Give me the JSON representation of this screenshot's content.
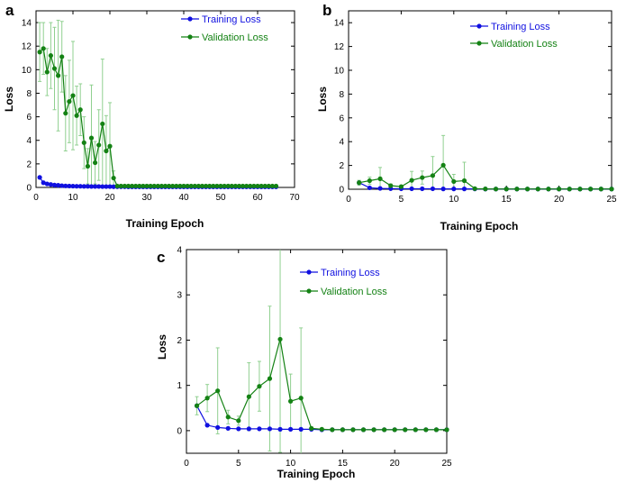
{
  "colors": {
    "training": "#1010e0",
    "validation": "#148214",
    "validation_err": "#90d090",
    "training_err": "#8c8cf0"
  },
  "chart_data": [
    {
      "panel": "a",
      "type": "line",
      "title": "",
      "xlabel": "Training Epoch",
      "ylabel": "Loss",
      "xlim": [
        0,
        70
      ],
      "ylim": [
        0,
        15
      ],
      "xticks": [
        "0",
        "10",
        "20",
        "30",
        "40",
        "50",
        "60",
        "70"
      ],
      "yticks": [
        "0",
        "2",
        "4",
        "6",
        "8",
        "10",
        "12",
        "14"
      ],
      "legend_position": "top-right",
      "grid": false,
      "series": [
        {
          "name": "Training Loss",
          "color": "#1010e0",
          "x": [
            1,
            2,
            3,
            4,
            5,
            6,
            7,
            8,
            9,
            10,
            11,
            12,
            13,
            14,
            15,
            16,
            17,
            18,
            19,
            20,
            21,
            22,
            23,
            24,
            25,
            26,
            27,
            28,
            29,
            30,
            31,
            32,
            33,
            34,
            35,
            36,
            37,
            38,
            39,
            40,
            41,
            42,
            43,
            44,
            45,
            46,
            47,
            48,
            49,
            50,
            51,
            52,
            53,
            54,
            55,
            56,
            57,
            58,
            59,
            60,
            61,
            62,
            63,
            64,
            65
          ],
          "y": [
            0.85,
            0.4,
            0.3,
            0.25,
            0.2,
            0.18,
            0.15,
            0.13,
            0.12,
            0.11,
            0.1,
            0.1,
            0.09,
            0.09,
            0.08,
            0.08,
            0.08,
            0.07,
            0.07,
            0.07,
            0.06,
            0.06,
            0.06,
            0.06,
            0.05,
            0.05,
            0.05,
            0.05,
            0.05,
            0.05,
            0.05,
            0.05,
            0.05,
            0.05,
            0.05,
            0.05,
            0.05,
            0.05,
            0.05,
            0.05,
            0.05,
            0.05,
            0.05,
            0.05,
            0.05,
            0.05,
            0.05,
            0.05,
            0.05,
            0.05,
            0.05,
            0.05,
            0.05,
            0.05,
            0.05,
            0.05,
            0.05,
            0.05,
            0.05,
            0.05,
            0.05,
            0.05,
            0.05,
            0.05,
            0.05
          ]
        },
        {
          "name": "Validation Loss",
          "color": "#148214",
          "x": [
            1,
            2,
            3,
            4,
            5,
            6,
            7,
            8,
            9,
            10,
            11,
            12,
            13,
            14,
            15,
            16,
            17,
            18,
            19,
            20,
            21,
            22,
            23,
            24,
            25,
            26,
            27,
            28,
            29,
            30,
            31,
            32,
            33,
            34,
            35,
            36,
            37,
            38,
            39,
            40,
            41,
            42,
            43,
            44,
            45,
            46,
            47,
            48,
            49,
            50,
            51,
            52,
            53,
            54,
            55,
            56,
            57,
            58,
            59,
            60,
            61,
            62,
            63,
            64,
            65
          ],
          "y": [
            11.5,
            11.8,
            9.8,
            11.2,
            10.1,
            9.5,
            11.1,
            6.3,
            7.3,
            7.8,
            6.1,
            6.6,
            3.8,
            1.8,
            4.2,
            2.1,
            3.6,
            5.4,
            3.1,
            3.5,
            0.8,
            0.12,
            0.12,
            0.12,
            0.12,
            0.12,
            0.12,
            0.12,
            0.12,
            0.12,
            0.12,
            0.12,
            0.12,
            0.12,
            0.12,
            0.12,
            0.12,
            0.12,
            0.12,
            0.12,
            0.12,
            0.12,
            0.12,
            0.12,
            0.12,
            0.12,
            0.12,
            0.12,
            0.12,
            0.12,
            0.12,
            0.12,
            0.12,
            0.12,
            0.12,
            0.12,
            0.12,
            0.12,
            0.12,
            0.12,
            0.12,
            0.12,
            0.12,
            0.12,
            0.12
          ],
          "err": [
            2.5,
            2.2,
            2.0,
            2.8,
            3.5,
            4.7,
            3.0,
            3.2,
            3.5,
            4.6,
            2.5,
            2.2,
            2.2,
            1.5,
            4.5,
            1.8,
            3.0,
            5.5,
            3.0,
            3.7,
            0.6,
            0.05,
            0.05,
            0.05,
            0.05,
            0.05,
            0.05,
            0.05,
            0.05,
            0.05,
            0.05,
            0.05,
            0.05,
            0.05,
            0.05,
            0.05,
            0.05,
            0.05,
            0.05,
            0.05,
            0.05,
            0.05,
            0.05,
            0.05,
            0.05,
            0.05,
            0.05,
            0.05,
            0.05,
            0.05,
            0.05,
            0.05,
            0.05,
            0.05,
            0.05,
            0.05,
            0.05,
            0.05,
            0.05,
            0.05,
            0.05,
            0.05,
            0.05,
            0.05,
            0.05
          ]
        }
      ]
    },
    {
      "panel": "b",
      "type": "line",
      "title": "",
      "xlabel": "Training Epoch",
      "ylabel": "Loss",
      "xlim": [
        0,
        25
      ],
      "ylim": [
        0,
        15
      ],
      "xticks": [
        "0",
        "5",
        "10",
        "15",
        "20",
        "25"
      ],
      "yticks": [
        "0",
        "2",
        "4",
        "6",
        "8",
        "10",
        "12",
        "14"
      ],
      "legend_position": "top-right",
      "grid": false,
      "series": [
        {
          "name": "Training Loss",
          "color": "#1010e0",
          "x": [
            1,
            2,
            3,
            4,
            5,
            6,
            7,
            8,
            9,
            10,
            11,
            12,
            13,
            14,
            15,
            16,
            17,
            18,
            19,
            20,
            21,
            22,
            23,
            24,
            25
          ],
          "y": [
            0.55,
            0.12,
            0.07,
            0.05,
            0.04,
            0.04,
            0.04,
            0.04,
            0.03,
            0.03,
            0.03,
            0.03,
            0.02,
            0.02,
            0.02,
            0.02,
            0.02,
            0.02,
            0.02,
            0.02,
            0.02,
            0.02,
            0.02,
            0.02,
            0.02
          ]
        },
        {
          "name": "Validation Loss",
          "color": "#148214",
          "x": [
            1,
            2,
            3,
            4,
            5,
            6,
            7,
            8,
            9,
            10,
            11,
            12,
            13,
            14,
            15,
            16,
            17,
            18,
            19,
            20,
            21,
            22,
            23,
            24,
            25
          ],
          "y": [
            0.55,
            0.72,
            0.88,
            0.3,
            0.22,
            0.75,
            0.98,
            1.15,
            2.02,
            0.65,
            0.72,
            0.05,
            0.03,
            0.02,
            0.02,
            0.02,
            0.02,
            0.02,
            0.02,
            0.02,
            0.02,
            0.02,
            0.02,
            0.02,
            0.02
          ],
          "err": [
            0.2,
            0.3,
            0.95,
            0.15,
            0.1,
            0.75,
            0.55,
            1.6,
            2.5,
            0.6,
            1.55,
            0.03,
            0.02,
            0.01,
            0.01,
            0.01,
            0.01,
            0.01,
            0.01,
            0.01,
            0.01,
            0.01,
            0.01,
            0.01,
            0.01
          ]
        }
      ]
    },
    {
      "panel": "c",
      "type": "line",
      "title": "",
      "xlabel": "Training Epoch",
      "ylabel": "Loss",
      "xlim": [
        0,
        25
      ],
      "ylim": [
        -0.5,
        4
      ],
      "xticks": [
        "0",
        "5",
        "10",
        "15",
        "20",
        "25"
      ],
      "yticks": [
        "0",
        "1",
        "2",
        "3",
        "4"
      ],
      "legend_position": "top-right",
      "grid": false,
      "series": [
        {
          "name": "Training Loss",
          "color": "#1010e0",
          "x": [
            1,
            2,
            3,
            4,
            5,
            6,
            7,
            8,
            9,
            10,
            11,
            12,
            13,
            14,
            15,
            16,
            17,
            18,
            19,
            20,
            21,
            22,
            23,
            24,
            25
          ],
          "y": [
            0.55,
            0.12,
            0.07,
            0.05,
            0.04,
            0.04,
            0.04,
            0.04,
            0.03,
            0.03,
            0.03,
            0.03,
            0.02,
            0.02,
            0.02,
            0.02,
            0.02,
            0.02,
            0.02,
            0.02,
            0.02,
            0.02,
            0.02,
            0.02,
            0.02
          ]
        },
        {
          "name": "Validation Loss",
          "color": "#148214",
          "x": [
            1,
            2,
            3,
            4,
            5,
            6,
            7,
            8,
            9,
            10,
            11,
            12,
            13,
            14,
            15,
            16,
            17,
            18,
            19,
            20,
            21,
            22,
            23,
            24,
            25
          ],
          "y": [
            0.55,
            0.72,
            0.88,
            0.3,
            0.22,
            0.75,
            0.98,
            1.15,
            2.02,
            0.65,
            0.72,
            0.05,
            0.03,
            0.02,
            0.02,
            0.02,
            0.02,
            0.02,
            0.02,
            0.02,
            0.02,
            0.02,
            0.02,
            0.02,
            0.02
          ],
          "err": [
            0.2,
            0.3,
            0.95,
            0.15,
            0.1,
            0.75,
            0.55,
            1.6,
            2.5,
            0.6,
            1.55,
            0.03,
            0.02,
            0.01,
            0.01,
            0.01,
            0.01,
            0.01,
            0.01,
            0.01,
            0.01,
            0.01,
            0.01,
            0.01,
            0.01
          ]
        }
      ]
    }
  ]
}
